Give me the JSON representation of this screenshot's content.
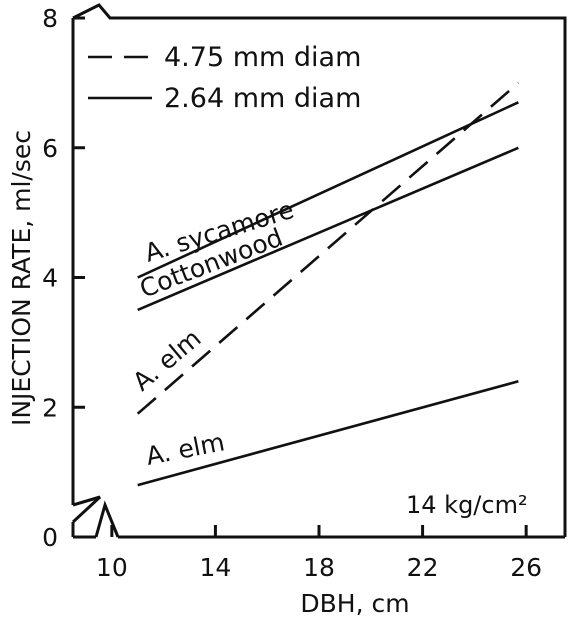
{
  "chart_data": {
    "type": "line",
    "xlabel": "DBH, cm",
    "ylabel": "INJECTION RATE, ml/sec",
    "xlim": [
      8.5,
      27.5
    ],
    "ylim": [
      0,
      8
    ],
    "xticks": [
      10,
      14,
      18,
      22,
      26
    ],
    "yticks": [
      0,
      2,
      4,
      6,
      8
    ],
    "axis_breaks": [
      "x",
      "y"
    ],
    "legend": {
      "position": "top-left",
      "entries": [
        {
          "style": "dashed",
          "label": "4.75 mm diam"
        },
        {
          "style": "solid",
          "label": "2.64 mm diam"
        }
      ]
    },
    "annotation": "14 kg/cm²",
    "series": [
      {
        "label": "A. sycamore",
        "style": "solid",
        "x": [
          11,
          25.7
        ],
        "y": [
          4.0,
          6.7
        ]
      },
      {
        "label": "Cottonwood",
        "style": "solid",
        "x": [
          11,
          25.7
        ],
        "y": [
          3.5,
          6.0
        ]
      },
      {
        "label": "A. elm",
        "style": "dashed",
        "x": [
          11,
          25.7
        ],
        "y": [
          1.9,
          7.0
        ]
      },
      {
        "label": "A. elm",
        "style": "solid",
        "x": [
          11,
          25.7
        ],
        "y": [
          0.8,
          2.4
        ]
      }
    ]
  }
}
